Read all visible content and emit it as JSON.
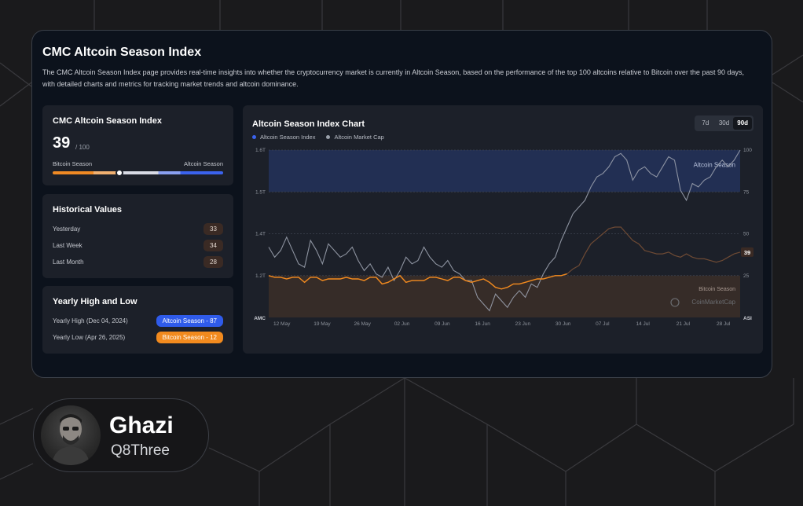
{
  "page": {
    "title": "CMC Altcoin Season Index",
    "description": "The CMC Altcoin Season Index page provides real-time insights into whether the cryptocurrency market is currently in Altcoin Season, based on the performance of the top 100 altcoins relative to Bitcoin over the past 90 days, with detailed charts and metrics for tracking market trends and altcoin dominance."
  },
  "index_card": {
    "title": "CMC Altcoin Season Index",
    "value": "39",
    "max": "/ 100",
    "left_label": "Bitcoin Season",
    "right_label": "Altcoin Season",
    "position": 39
  },
  "historical": {
    "title": "Historical Values",
    "rows": [
      {
        "label": "Yesterday",
        "value": "33"
      },
      {
        "label": "Last Week",
        "value": "34"
      },
      {
        "label": "Last Month",
        "value": "28"
      }
    ]
  },
  "yearly": {
    "title": "Yearly High and Low",
    "high_label": "Yearly High (Dec 04, 2024)",
    "high_badge": "Altcoin Season - 87",
    "low_label": "Yearly Low (Apr 26, 2025)",
    "low_badge": "Bitcoin Season - 12",
    "colors": {
      "altcoin": "#2f5bea",
      "bitcoin": "#f28a1e"
    }
  },
  "chart_panel": {
    "title": "Altcoin Season Index Chart",
    "ranges": [
      "7d",
      "30d",
      "90d"
    ],
    "active_range": "90d",
    "legend": [
      {
        "label": "Altcoin Season Index",
        "color": "#3b63ee"
      },
      {
        "label": "Altcoin Market Cap",
        "color": "#9aa0aa"
      }
    ]
  },
  "chart_data": {
    "type": "line",
    "left_axis_label": "AMC",
    "right_axis_label": "ASI",
    "left_ticks": [
      "1.6T",
      "1.5T",
      "1.4T",
      "1.2T"
    ],
    "right_ticks": [
      "100",
      "75",
      "50",
      "25"
    ],
    "x_labels": [
      "12 May",
      "19 May",
      "26 May",
      "02 Jun",
      "09 Jun",
      "16 Jun",
      "23 Jun",
      "30 Jun",
      "07 Jul",
      "14 Jul",
      "21 Jul",
      "28 Jul"
    ],
    "ylim_index": [
      0,
      100
    ],
    "zones": {
      "altcoin_threshold": 75,
      "bitcoin_threshold": 25
    },
    "zone_labels": {
      "altcoin": "Altcoin Season",
      "bitcoin": "Bitcoin Season"
    },
    "current_value_label": "39",
    "watermark": "CoinMarketCap",
    "series": [
      {
        "name": "Altcoin Season Index",
        "axis": "right",
        "values": [
          25,
          24,
          24,
          23,
          24,
          24,
          21,
          24,
          24,
          22,
          23,
          23,
          23,
          24,
          23,
          23,
          22,
          24,
          24,
          20,
          21,
          23,
          25,
          21,
          22,
          22,
          22,
          24,
          24,
          23,
          22,
          24,
          24,
          22,
          21,
          22,
          23,
          21,
          18,
          17,
          18,
          20,
          20,
          21,
          22,
          23,
          23,
          24,
          25,
          25,
          26,
          29,
          31,
          38,
          44,
          47,
          50,
          53,
          54,
          54,
          50,
          46,
          44,
          40,
          39,
          38,
          38,
          39,
          37,
          36,
          38,
          36,
          35,
          35,
          34,
          33,
          34,
          36,
          38,
          39
        ]
      },
      {
        "name": "Altcoin Market Cap",
        "axis": "left",
        "values": [
          1.31,
          1.28,
          1.3,
          1.34,
          1.3,
          1.26,
          1.25,
          1.33,
          1.3,
          1.26,
          1.32,
          1.3,
          1.28,
          1.29,
          1.31,
          1.27,
          1.24,
          1.26,
          1.23,
          1.22,
          1.25,
          1.21,
          1.24,
          1.28,
          1.26,
          1.27,
          1.31,
          1.28,
          1.26,
          1.25,
          1.27,
          1.24,
          1.23,
          1.21,
          1.21,
          1.16,
          1.14,
          1.12,
          1.17,
          1.15,
          1.13,
          1.16,
          1.18,
          1.16,
          1.2,
          1.19,
          1.23,
          1.26,
          1.28,
          1.33,
          1.37,
          1.41,
          1.43,
          1.45,
          1.49,
          1.52,
          1.53,
          1.55,
          1.58,
          1.59,
          1.57,
          1.51,
          1.54,
          1.55,
          1.53,
          1.52,
          1.55,
          1.58,
          1.57,
          1.48,
          1.45,
          1.5,
          1.49,
          1.51,
          1.52,
          1.55,
          1.57,
          1.55,
          1.57,
          1.6
        ]
      }
    ]
  },
  "profile": {
    "name": "Ghazi",
    "handle": "Q8Three"
  }
}
